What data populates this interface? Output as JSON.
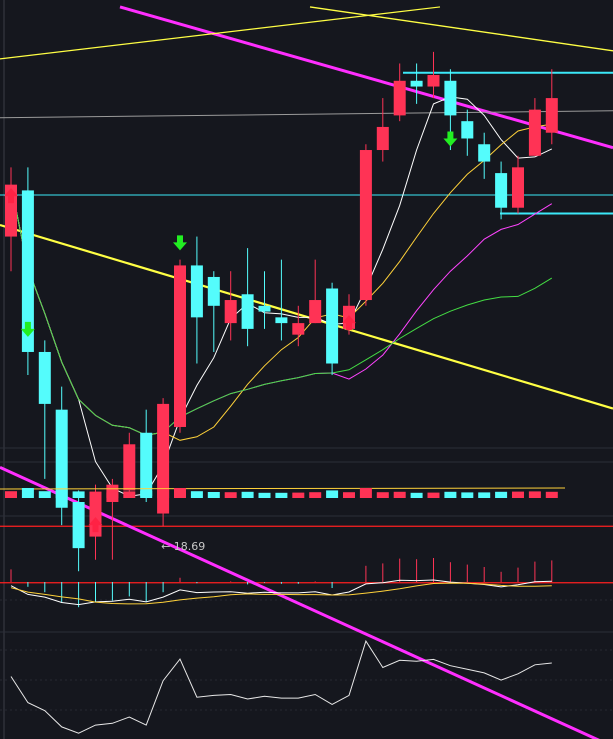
{
  "chart_data": {
    "type": "candlestick",
    "annotation": {
      "text": "← 18.69",
      "price": 18.69,
      "candle": 9
    },
    "colors": {
      "background": "#15171e",
      "up": "#ff3355",
      "down": "#54fcfc",
      "ma5": "#ffffff",
      "ma10": "#ffd23a",
      "ma20": "#ff44ff",
      "ma30": "#44dd44",
      "trend_magenta": "#ff2eff",
      "trend_yellow": "#ffff44",
      "trend_cyan": "#3be8f8",
      "support_red": "#ff2020",
      "arrow_buy": "#ff2244",
      "arrow_sell": "#22ee22"
    },
    "candles": [
      {
        "o": 21.2,
        "c": 21.65,
        "h": 21.8,
        "l": 20.9
      },
      {
        "o": 21.6,
        "c": 20.2,
        "h": 21.8,
        "l": 20.0
      },
      {
        "o": 20.2,
        "c": 19.75,
        "h": 20.3,
        "l": 19.1
      },
      {
        "o": 19.7,
        "c": 18.85,
        "h": 19.9,
        "l": 18.7
      },
      {
        "o": 18.9,
        "c": 18.5,
        "h": 19.0,
        "l": 18.3
      },
      {
        "o": 18.6,
        "c": 18.95,
        "h": 19.05,
        "l": 18.4
      },
      {
        "o": 18.9,
        "c": 19.05,
        "h": 19.1,
        "l": 18.4
      },
      {
        "o": 19.0,
        "c": 19.4,
        "h": 19.5,
        "l": 18.95
      },
      {
        "o": 19.5,
        "c": 18.95,
        "h": 19.7,
        "l": 18.9
      },
      {
        "o": 18.8,
        "c": 19.75,
        "h": 19.8,
        "l": 18.69
      },
      {
        "o": 19.55,
        "c": 20.95,
        "h": 21.0,
        "l": 19.5
      },
      {
        "o": 20.95,
        "c": 20.5,
        "h": 21.2,
        "l": 20.1
      },
      {
        "o": 20.85,
        "c": 20.6,
        "h": 20.9,
        "l": 20.2
      },
      {
        "o": 20.45,
        "c": 20.65,
        "h": 20.9,
        "l": 20.3
      },
      {
        "o": 20.7,
        "c": 20.4,
        "h": 21.1,
        "l": 20.25
      },
      {
        "o": 20.6,
        "c": 20.55,
        "h": 20.9,
        "l": 20.4
      },
      {
        "o": 20.5,
        "c": 20.45,
        "h": 21.0,
        "l": 20.3
      },
      {
        "o": 20.35,
        "c": 20.45,
        "h": 20.6,
        "l": 20.25
      },
      {
        "o": 20.45,
        "c": 20.65,
        "h": 21.0,
        "l": 20.45
      },
      {
        "o": 20.75,
        "c": 20.1,
        "h": 20.8,
        "l": 20.0
      },
      {
        "o": 20.4,
        "c": 20.6,
        "h": 20.7,
        "l": 20.35
      },
      {
        "o": 20.65,
        "c": 21.95,
        "h": 22.0,
        "l": 20.6
      },
      {
        "o": 21.95,
        "c": 22.15,
        "h": 22.4,
        "l": 21.85
      },
      {
        "o": 22.25,
        "c": 22.55,
        "h": 22.7,
        "l": 22.2
      },
      {
        "o": 22.55,
        "c": 22.5,
        "h": 22.7,
        "l": 22.35
      },
      {
        "o": 22.5,
        "c": 22.6,
        "h": 22.8,
        "l": 22.4
      },
      {
        "o": 22.55,
        "c": 22.25,
        "h": 22.65,
        "l": 21.95
      },
      {
        "o": 22.2,
        "c": 22.05,
        "h": 22.3,
        "l": 21.9
      },
      {
        "o": 22.0,
        "c": 21.85,
        "h": 22.1,
        "l": 21.7
      },
      {
        "o": 21.75,
        "c": 21.45,
        "h": 21.85,
        "l": 21.35
      },
      {
        "o": 21.45,
        "c": 21.8,
        "h": 21.9,
        "l": 21.4
      },
      {
        "o": 21.9,
        "c": 22.3,
        "h": 22.4,
        "l": 21.9
      },
      {
        "o": 22.1,
        "c": 22.4,
        "h": 22.65,
        "l": 22.0
      }
    ],
    "price_lines": [
      {
        "name": "cyan-resistance",
        "price": 22.62,
        "color": "#3be8f8",
        "width": 2,
        "x1": 403,
        "x2": 613
      },
      {
        "name": "cyan-channel-mid",
        "price": 21.56,
        "color": "#3be8f8",
        "width": 1,
        "x1": 0,
        "x2": 613
      },
      {
        "name": "cyan-support",
        "price": 21.4,
        "color": "#3be8f8",
        "width": 2,
        "x1": 500,
        "x2": 613
      },
      {
        "name": "red-support-upper",
        "price": 18.69,
        "color": "#ff2020",
        "width": 1.2,
        "x1": 0,
        "x2": 613
      },
      {
        "name": "red-support-lower",
        "price": 18.2,
        "color": "#ff2020",
        "width": 1.2,
        "x1": 0,
        "x2": 613
      }
    ],
    "trend_lines": [
      {
        "name": "magenta-upper",
        "color": "#ff2eff",
        "width": 3,
        "p1": {
          "x": 120,
          "y": 23.19
        },
        "p2": {
          "x": 613,
          "y": 21.97
        }
      },
      {
        "name": "magenta-lower",
        "color": "#ff2eff",
        "width": 3,
        "p1": {
          "x": 0,
          "y": 19.2
        },
        "p2": {
          "x": 613,
          "y": 16.78
        }
      },
      {
        "name": "yellow-mid",
        "color": "#ffff44",
        "width": 2.2,
        "p1": {
          "x": 0,
          "y": 21.3
        },
        "p2": {
          "x": 613,
          "y": 19.71
        }
      },
      {
        "name": "yellow-top",
        "color": "#ffff44",
        "width": 1.4,
        "p1": {
          "x": 310,
          "y": 23.19
        },
        "p2": {
          "x": 613,
          "y": 22.81
        }
      },
      {
        "name": "yellow-rising",
        "color": "#ffff44",
        "width": 1.2,
        "p1": {
          "x": 0,
          "y": 22.74
        },
        "p2": {
          "x": 440,
          "y": 23.19
        }
      },
      {
        "name": "gray-horizontal",
        "color": "#9a9a9a",
        "width": 1,
        "p1": {
          "x": 0,
          "y": 22.23
        },
        "p2": {
          "x": 613,
          "y": 22.29
        }
      }
    ],
    "arrows": [
      {
        "candle": 0,
        "dir": "up",
        "color": "#ff2244",
        "price": 21.55
      },
      {
        "candle": 1,
        "dir": "down",
        "color": "#22ee22",
        "price": 20.4
      },
      {
        "candle": 5,
        "dir": "up",
        "color": "#ff2244",
        "price": 18.7
      },
      {
        "candle": 10,
        "dir": "down",
        "color": "#22ee22",
        "price": 21.15
      },
      {
        "candle": 20,
        "dir": "up",
        "color": "#ff2244",
        "price": 20.45
      },
      {
        "candle": 26,
        "dir": "down",
        "color": "#22ee22",
        "price": 22.05
      }
    ]
  }
}
